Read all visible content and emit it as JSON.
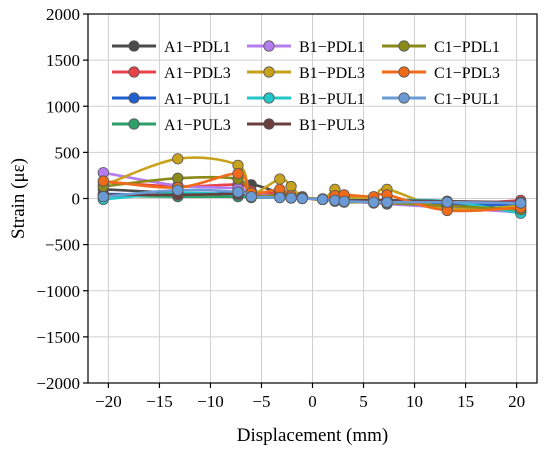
{
  "chart_data": {
    "type": "line",
    "xlabel": "Displacement (mm)",
    "ylabel": "Strain (με)",
    "xlim": [
      -22,
      22
    ],
    "ylim": [
      -2000,
      2000
    ],
    "x_ticks": [
      -20,
      -15,
      -10,
      -5,
      0,
      5,
      10,
      15,
      20
    ],
    "y_ticks": [
      -2000,
      -1500,
      -1000,
      -500,
      0,
      500,
      1000,
      1500,
      2000
    ],
    "grid": true,
    "legend_position": "top",
    "series": [
      {
        "name": "A1−PDL1",
        "color": "#4a4a4a",
        "x": [
          -20.5,
          -13.2,
          -7.3,
          -6.0,
          -3.2,
          -2.1,
          -1.0,
          1.0,
          2.2,
          3.1,
          6.0,
          7.3,
          13.2,
          20.4
        ],
        "y": [
          100,
          60,
          40,
          150,
          60,
          30,
          10,
          -10,
          -30,
          -20,
          -40,
          -30,
          -50,
          -130
        ]
      },
      {
        "name": "A1−PDL3",
        "color": "#e8414a",
        "x": [
          -20.5,
          -13.2,
          -7.3,
          -6.0,
          -3.2,
          -2.1,
          -1.0,
          1.0,
          2.2,
          3.1,
          6.0,
          7.3,
          13.2,
          20.4
        ],
        "y": [
          180,
          130,
          150,
          80,
          50,
          30,
          10,
          -10,
          -20,
          -30,
          -30,
          -20,
          -60,
          -20
        ]
      },
      {
        "name": "A1−PUL1",
        "color": "#1f5fcf",
        "x": [
          -20.5,
          -13.2,
          -7.3,
          -6.0,
          -3.2,
          -2.1,
          -1.0,
          1.0,
          2.2,
          3.1,
          6.0,
          7.3,
          13.2,
          20.4
        ],
        "y": [
          50,
          40,
          60,
          20,
          20,
          10,
          5,
          -5,
          -10,
          -20,
          -30,
          -40,
          -50,
          -80
        ]
      },
      {
        "name": "A1−PUL3",
        "color": "#2e9e6a",
        "x": [
          -20.5,
          -13.2,
          -7.3,
          -6.0,
          -3.2,
          -2.1,
          -1.0,
          1.0,
          2.2,
          3.1,
          6.0,
          7.3,
          13.2,
          20.4
        ],
        "y": [
          30,
          20,
          20,
          10,
          10,
          5,
          0,
          -5,
          -10,
          -20,
          -20,
          -20,
          -30,
          -50
        ]
      },
      {
        "name": "B1−PDL1",
        "color": "#b57cf0",
        "x": [
          -20.5,
          -13.2,
          -7.3,
          -6.0,
          -3.2,
          -2.1,
          -1.0,
          1.0,
          2.2,
          3.1,
          6.0,
          7.3,
          13.2,
          20.4
        ],
        "y": [
          280,
          140,
          110,
          50,
          30,
          20,
          10,
          -10,
          -20,
          -30,
          -50,
          -60,
          -100,
          -150
        ]
      },
      {
        "name": "B1−PDL3",
        "color": "#c9a21c",
        "x": [
          -20.5,
          -13.2,
          -7.3,
          -6.0,
          -3.2,
          -2.1,
          -1.0,
          1.0,
          2.2,
          3.1,
          6.0,
          7.3,
          13.2,
          20.4
        ],
        "y": [
          140,
          430,
          360,
          60,
          210,
          130,
          20,
          -10,
          100,
          20,
          10,
          100,
          -110,
          -80
        ]
      },
      {
        "name": "B1−PUL1",
        "color": "#22c7c7",
        "x": [
          -20.5,
          -13.2,
          -7.3,
          -6.0,
          -3.2,
          -2.1,
          -1.0,
          1.0,
          2.2,
          3.1,
          6.0,
          7.3,
          13.2,
          20.4
        ],
        "y": [
          -10,
          60,
          40,
          20,
          10,
          5,
          0,
          -5,
          -10,
          -15,
          -20,
          -20,
          -30,
          -160
        ]
      },
      {
        "name": "B1−PUL3",
        "color": "#6b3f3f",
        "x": [
          -20.5,
          -13.2,
          -7.3,
          -6.0,
          -3.2,
          -2.1,
          -1.0,
          1.0,
          2.2,
          3.1,
          6.0,
          7.3,
          13.2,
          20.4
        ],
        "y": [
          40,
          40,
          50,
          30,
          20,
          10,
          5,
          -5,
          -10,
          -20,
          -20,
          -20,
          -30,
          -40
        ]
      },
      {
        "name": "C1−PDL1",
        "color": "#8a8a1a",
        "x": [
          -20.5,
          -13.2,
          -7.3,
          -6.0,
          -3.2,
          -2.1,
          -1.0,
          1.0,
          2.2,
          3.1,
          6.0,
          7.3,
          13.2,
          20.4
        ],
        "y": [
          130,
          220,
          210,
          30,
          40,
          20,
          10,
          -10,
          -20,
          -40,
          -40,
          -50,
          -80,
          -120
        ]
      },
      {
        "name": "C1−PDL3",
        "color": "#f06a1a",
        "x": [
          -20.5,
          -13.2,
          -7.3,
          -6.0,
          -3.2,
          -2.1,
          -1.0,
          1.0,
          2.2,
          3.1,
          6.0,
          7.3,
          13.2,
          20.4
        ],
        "y": [
          190,
          120,
          270,
          60,
          100,
          30,
          10,
          -10,
          30,
          40,
          20,
          40,
          -130,
          -100
        ]
      },
      {
        "name": "C1−PUL1",
        "color": "#6a9bd6",
        "x": [
          -20.5,
          -13.2,
          -7.3,
          -6.0,
          -3.2,
          -2.1,
          -1.0,
          1.0,
          2.2,
          3.1,
          6.0,
          7.3,
          13.2,
          20.4
        ],
        "y": [
          20,
          90,
          70,
          20,
          10,
          5,
          0,
          -10,
          -20,
          -30,
          -40,
          -40,
          -40,
          -50
        ]
      }
    ]
  }
}
